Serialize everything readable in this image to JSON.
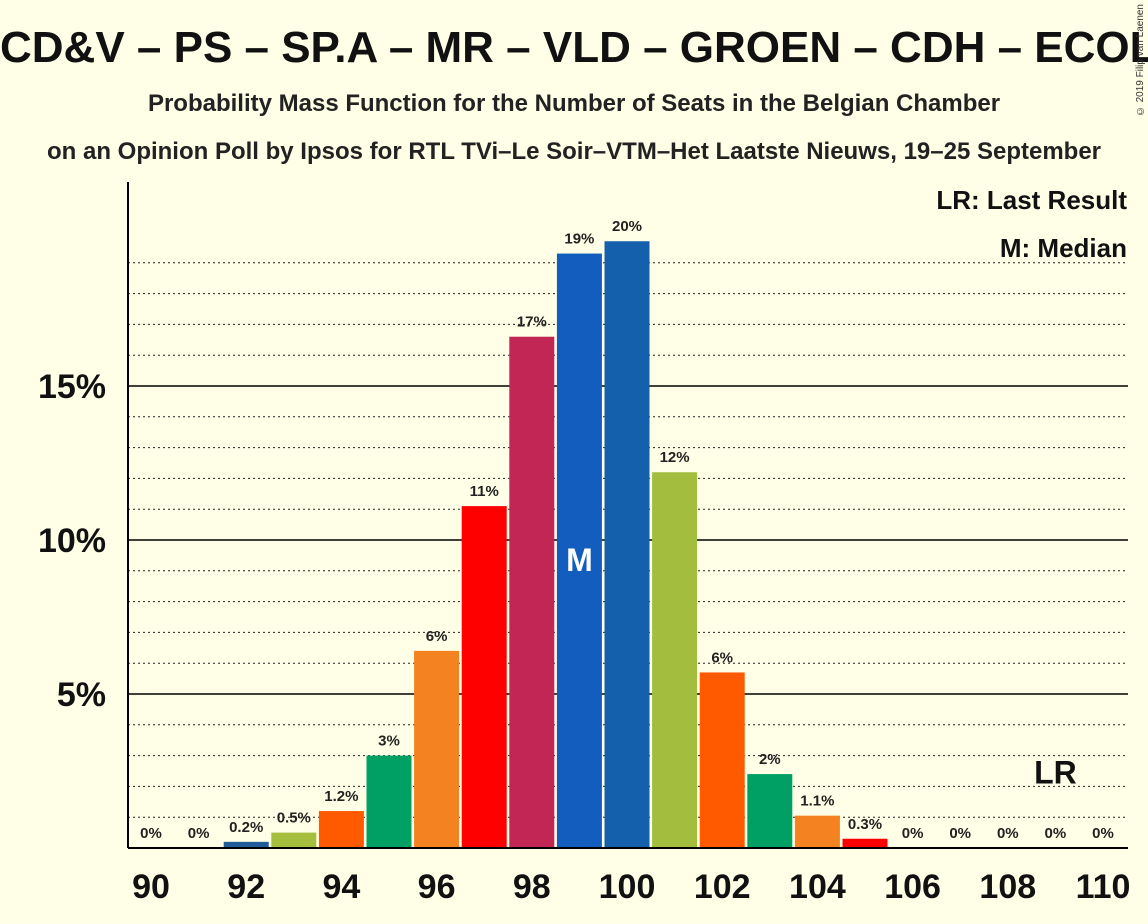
{
  "header": {
    "title": "CD&V – PS – SP.A – MR – VLD – GROEN – CDH – ECOLO",
    "subtitle": "Probability Mass Function for the Number of Seats in the Belgian Chamber",
    "caption": "on an Opinion Poll by Ipsos for RTL TVi–Le Soir–VTM–Het Laatste Nieuws, 19–25 September",
    "copyright": "© 2019 Filip van Laenen"
  },
  "legend": {
    "lr_text": "LR: Last Result",
    "m_text": "M: Median",
    "position": "top-right"
  },
  "chart_data": {
    "type": "bar",
    "x": [
      90,
      91,
      92,
      93,
      94,
      95,
      96,
      97,
      98,
      99,
      100,
      101,
      102,
      103,
      104,
      105,
      106,
      107,
      108,
      109,
      110
    ],
    "values": [
      0,
      0,
      0.2,
      0.5,
      1.2,
      3.0,
      6.4,
      11.1,
      16.6,
      19.3,
      19.7,
      12.2,
      5.7,
      2.4,
      1.05,
      0.3,
      0,
      0,
      0,
      0,
      0
    ],
    "labels": [
      "0%",
      "0%",
      "0.2%",
      "0.5%",
      "1.2%",
      "3%",
      "6%",
      "11%",
      "17%",
      "19%",
      "20%",
      "12%",
      "6%",
      "2%",
      "1.1%",
      "0.3%",
      "0%",
      "0%",
      "0%",
      "0%",
      "0%"
    ],
    "colors": [
      "#2E68B0",
      "#2E68B0",
      "#1F5C99",
      "#A6BE3E",
      "#FF5A00",
      "#00A064",
      "#F58220",
      "#FF0000",
      "#C22654",
      "#135DBF",
      "#1560AD",
      "#A3BD3F",
      "#FF5A00",
      "#00A064",
      "#F58220",
      "#FF0000",
      "#2E68B0",
      "#2E68B0",
      "#2E68B0",
      "#2E68B0",
      "#2E68B0"
    ],
    "x_ticks": [
      "90",
      "92",
      "94",
      "96",
      "98",
      "100",
      "102",
      "104",
      "106",
      "108",
      "110"
    ],
    "y_ticks": [
      {
        "value": 5,
        "label": "5%"
      },
      {
        "value": 10,
        "label": "10%"
      },
      {
        "value": 15,
        "label": "15%"
      }
    ],
    "ylim": [
      0,
      21.5
    ],
    "xlim": [
      90,
      110
    ],
    "median": {
      "x": 99,
      "label": "M"
    },
    "last_result": {
      "x": 109,
      "label": "LR"
    },
    "grid": true
  }
}
